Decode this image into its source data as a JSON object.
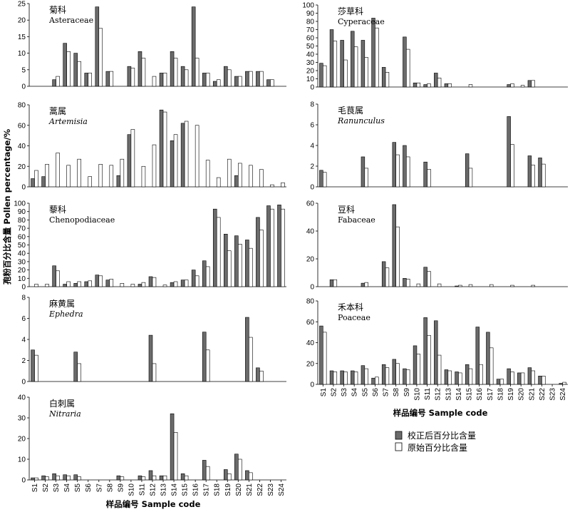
{
  "figure": {
    "ylabel": "孢粉百分比含量 Pollen percentage/%",
    "xlabel_left": "样品编号 Sample code",
    "xlabel_right": "样品编号 Sample code",
    "legend": [
      {
        "label": "校正后百分比含量",
        "color": "#6b6b6b"
      },
      {
        "label": "原始百分比含量",
        "color": "#ffffff"
      }
    ]
  },
  "chart_data": [
    {
      "type": "bar",
      "name_cn": "菊科",
      "name_latin": "Asteraceae",
      "latin_italic": false,
      "categories": [
        "S1",
        "S2",
        "S3",
        "S4",
        "S5",
        "S6",
        "S7",
        "S8",
        "S9",
        "S10",
        "S11",
        "S12",
        "S13",
        "S14",
        "S15",
        "S16",
        "S17",
        "S18",
        "S19",
        "S20",
        "S21",
        "S22",
        "S23",
        "S24"
      ],
      "ylim": [
        0,
        25
      ],
      "yticks": [
        0,
        5,
        10,
        15,
        20,
        25
      ],
      "series": [
        {
          "name": "校正后百分比含量",
          "values": [
            0,
            0,
            2,
            13,
            10,
            4,
            24,
            4.5,
            0,
            6,
            10.5,
            0,
            4,
            10.5,
            6,
            24,
            4,
            1.5,
            6,
            3,
            4.5,
            4.5,
            2,
            0
          ]
        },
        {
          "name": "原始百分比含量",
          "values": [
            0,
            0,
            3,
            10.5,
            7.5,
            4,
            17.5,
            4.5,
            0,
            5.5,
            8.5,
            3,
            4,
            8.5,
            5,
            8.5,
            4,
            2,
            5,
            3,
            4.5,
            4.5,
            2,
            0
          ]
        }
      ]
    },
    {
      "type": "bar",
      "name_cn": "蒿属",
      "name_latin": "Artemisia",
      "latin_italic": true,
      "categories": [
        "S1",
        "S2",
        "S3",
        "S4",
        "S5",
        "S6",
        "S7",
        "S8",
        "S9",
        "S10",
        "S11",
        "S12",
        "S13",
        "S14",
        "S15",
        "S16",
        "S17",
        "S18",
        "S19",
        "S20",
        "S21",
        "S22",
        "S23",
        "S24"
      ],
      "ylim": [
        0,
        80
      ],
      "yticks": [
        0,
        20,
        40,
        60,
        80
      ],
      "series": [
        {
          "name": "校正后百分比含量",
          "values": [
            8,
            10,
            0,
            0,
            0,
            0,
            0,
            0,
            11,
            51,
            0,
            0,
            75,
            45,
            62,
            0,
            0,
            0,
            0,
            11,
            0,
            0,
            0,
            0
          ]
        },
        {
          "name": "原始百分比含量",
          "values": [
            16,
            22,
            33,
            21,
            27,
            10,
            22,
            21,
            27,
            56,
            20,
            41,
            73,
            51,
            64,
            60,
            26,
            9,
            27,
            23,
            21,
            17,
            2,
            4
          ]
        }
      ]
    },
    {
      "type": "bar",
      "name_cn": "藜科",
      "name_latin": "Chenopodiaceae",
      "latin_italic": false,
      "categories": [
        "S1",
        "S2",
        "S3",
        "S4",
        "S5",
        "S6",
        "S7",
        "S8",
        "S9",
        "S10",
        "S11",
        "S12",
        "S13",
        "S14",
        "S15",
        "S16",
        "S17",
        "S18",
        "S19",
        "S20",
        "S21",
        "S22",
        "S23",
        "S24"
      ],
      "ylim": [
        0,
        100
      ],
      "yticks": [
        0,
        10,
        20,
        30,
        40,
        50,
        60,
        70,
        80,
        90,
        100
      ],
      "series": [
        {
          "name": "校正后百分比含量",
          "values": [
            0,
            0,
            25,
            3,
            4,
            6,
            14,
            8,
            0,
            0,
            3,
            12,
            0,
            5,
            8,
            20,
            31,
            93,
            63,
            61,
            56,
            83,
            97,
            98
          ]
        },
        {
          "name": "原始百分比含量",
          "values": [
            3,
            3,
            19,
            6,
            6,
            7,
            13,
            9,
            4,
            3,
            5,
            11,
            2,
            6,
            8,
            13,
            24,
            83,
            43,
            51,
            46,
            68,
            93,
            93
          ]
        }
      ]
    },
    {
      "type": "bar",
      "name_cn": "麻黄属",
      "name_latin": "Ephedra",
      "latin_italic": true,
      "categories": [
        "S1",
        "S2",
        "S3",
        "S4",
        "S5",
        "S6",
        "S7",
        "S8",
        "S9",
        "S10",
        "S11",
        "S12",
        "S13",
        "S14",
        "S15",
        "S16",
        "S17",
        "S18",
        "S19",
        "S20",
        "S21",
        "S22",
        "S23",
        "S24"
      ],
      "ylim": [
        0,
        8
      ],
      "yticks": [
        0,
        2,
        4,
        6,
        8
      ],
      "series": [
        {
          "name": "校正后百分比含量",
          "values": [
            3,
            0,
            0,
            0,
            2.8,
            0,
            0,
            0,
            0,
            0,
            0,
            4.4,
            0,
            0,
            0,
            0,
            4.7,
            0,
            0,
            0,
            6.1,
            1.3,
            0,
            0
          ]
        },
        {
          "name": "原始百分比含量",
          "values": [
            2.5,
            0,
            0,
            0,
            1.7,
            0,
            0,
            0,
            0,
            0,
            0,
            1.7,
            0,
            0,
            0,
            0,
            3,
            0,
            0,
            0,
            4.2,
            1,
            0,
            0
          ]
        }
      ]
    },
    {
      "type": "bar",
      "name_cn": "白刺属",
      "name_latin": "Nitraria",
      "latin_italic": true,
      "categories": [
        "S1",
        "S2",
        "S3",
        "S4",
        "S5",
        "S6",
        "S7",
        "S8",
        "S9",
        "S10",
        "S11",
        "S12",
        "S13",
        "S14",
        "S15",
        "S16",
        "S17",
        "S18",
        "S19",
        "S20",
        "S21",
        "S22",
        "S23",
        "S24"
      ],
      "ylim": [
        0,
        40
      ],
      "yticks": [
        0,
        10,
        20,
        30,
        40
      ],
      "series": [
        {
          "name": "校正后百分比含量",
          "values": [
            1,
            2,
            3,
            2.5,
            2.5,
            0,
            0,
            0,
            2,
            0,
            2,
            4.5,
            2,
            32,
            3,
            0,
            9.5,
            0,
            5,
            12.5,
            4.5,
            0,
            0,
            0
          ]
        },
        {
          "name": "原始百分比含量",
          "values": [
            1,
            1.5,
            2,
            2,
            1.5,
            0,
            0,
            0,
            1.5,
            0,
            1.5,
            2,
            2,
            23,
            2,
            0,
            6.5,
            0,
            3,
            10,
            3.5,
            0,
            0,
            0
          ]
        }
      ]
    },
    {
      "type": "bar",
      "name_cn": "莎草科",
      "name_latin": "Cyperaceae",
      "latin_italic": false,
      "categories": [
        "S1",
        "S2",
        "S3",
        "S4",
        "S5",
        "S6",
        "S7",
        "S8",
        "S9",
        "S10",
        "S11",
        "S12",
        "S13",
        "S14",
        "S15",
        "S16",
        "S17",
        "S18",
        "S19",
        "S20",
        "S21",
        "S22",
        "S23",
        "S24"
      ],
      "ylim": [
        0,
        100
      ],
      "yticks": [
        0,
        10,
        20,
        30,
        40,
        50,
        60,
        70,
        80,
        90,
        100
      ],
      "series": [
        {
          "name": "校正后百分比含量",
          "values": [
            29,
            70,
            57,
            68,
            57,
            84,
            24,
            0,
            61,
            5,
            3,
            17,
            4,
            0,
            0,
            0,
            0,
            0,
            3,
            0,
            8,
            0,
            0,
            0
          ]
        },
        {
          "name": "原始百分比含量",
          "values": [
            26,
            56,
            33,
            49,
            36,
            72,
            18,
            0,
            46,
            5,
            4,
            11,
            4,
            0,
            3,
            0,
            0,
            0,
            4,
            2,
            8,
            0,
            0,
            0
          ]
        }
      ]
    },
    {
      "type": "bar",
      "name_cn": "毛茛属",
      "name_latin": "Ranunculus",
      "latin_italic": true,
      "categories": [
        "S1",
        "S2",
        "S3",
        "S4",
        "S5",
        "S6",
        "S7",
        "S8",
        "S9",
        "S10",
        "S11",
        "S12",
        "S13",
        "S14",
        "S15",
        "S16",
        "S17",
        "S18",
        "S19",
        "S20",
        "S21",
        "S22",
        "S23",
        "S24"
      ],
      "ylim": [
        0,
        8
      ],
      "yticks": [
        0,
        2,
        4,
        6,
        8
      ],
      "series": [
        {
          "name": "校正后百分比含量",
          "values": [
            1.6,
            0,
            0,
            0,
            2.9,
            0,
            0,
            4.3,
            4,
            0,
            2.4,
            0,
            0,
            0,
            3.2,
            0,
            0,
            0,
            6.8,
            0,
            3,
            2.8,
            0,
            0
          ]
        },
        {
          "name": "原始百分比含量",
          "values": [
            1.4,
            0,
            0,
            0,
            1.8,
            0,
            0,
            3.1,
            2.9,
            0,
            1.7,
            0,
            0,
            0,
            1.8,
            0,
            0,
            0,
            4.1,
            0,
            2.1,
            2.2,
            0,
            0
          ]
        }
      ]
    },
    {
      "type": "bar",
      "name_cn": "豆科",
      "name_latin": "Fabaceae",
      "latin_italic": false,
      "categories": [
        "S1",
        "S2",
        "S3",
        "S4",
        "S5",
        "S6",
        "S7",
        "S8",
        "S9",
        "S10",
        "S11",
        "S12",
        "S13",
        "S14",
        "S15",
        "S16",
        "S17",
        "S18",
        "S19",
        "S20",
        "S21",
        "S22",
        "S23",
        "S24"
      ],
      "ylim": [
        0,
        60
      ],
      "yticks": [
        0,
        20,
        40,
        60
      ],
      "series": [
        {
          "name": "校正后百分比含量",
          "values": [
            0,
            5,
            0,
            0,
            2.5,
            0,
            18,
            59,
            6,
            0,
            14,
            0,
            0,
            0.5,
            0,
            0,
            0,
            0,
            0,
            0,
            0,
            0,
            0,
            0
          ]
        },
        {
          "name": "原始百分比含量",
          "values": [
            0,
            5,
            0,
            0,
            3,
            0,
            13.5,
            43,
            5.5,
            2,
            11,
            2,
            0,
            1,
            1.5,
            0,
            1.5,
            0,
            1,
            0,
            1,
            0,
            0,
            0
          ]
        }
      ]
    },
    {
      "type": "bar",
      "name_cn": "禾本科",
      "name_latin": "Poaceae",
      "latin_italic": false,
      "categories": [
        "S1",
        "S2",
        "S3",
        "S4",
        "S5",
        "S6",
        "S7",
        "S8",
        "S9",
        "S10",
        "S11",
        "S12",
        "S13",
        "S14",
        "S15",
        "S16",
        "S17",
        "S18",
        "S19",
        "S20",
        "S21",
        "S22",
        "S23",
        "S24"
      ],
      "ylim": [
        0,
        80
      ],
      "yticks": [
        0,
        20,
        40,
        60,
        80
      ],
      "series": [
        {
          "name": "校正后百分比含量",
          "values": [
            56,
            13,
            13,
            13,
            18,
            6,
            19,
            24,
            15,
            37,
            64,
            61,
            14,
            12,
            19,
            55,
            50,
            5,
            15,
            11,
            16,
            8,
            0,
            1
          ]
        },
        {
          "name": "原始百分比含量",
          "values": [
            50,
            12,
            12,
            12,
            15,
            7,
            16,
            20,
            14,
            29,
            47,
            28,
            13,
            11,
            15,
            19,
            35,
            5,
            12,
            11,
            13,
            8,
            0,
            2
          ]
        }
      ]
    }
  ]
}
